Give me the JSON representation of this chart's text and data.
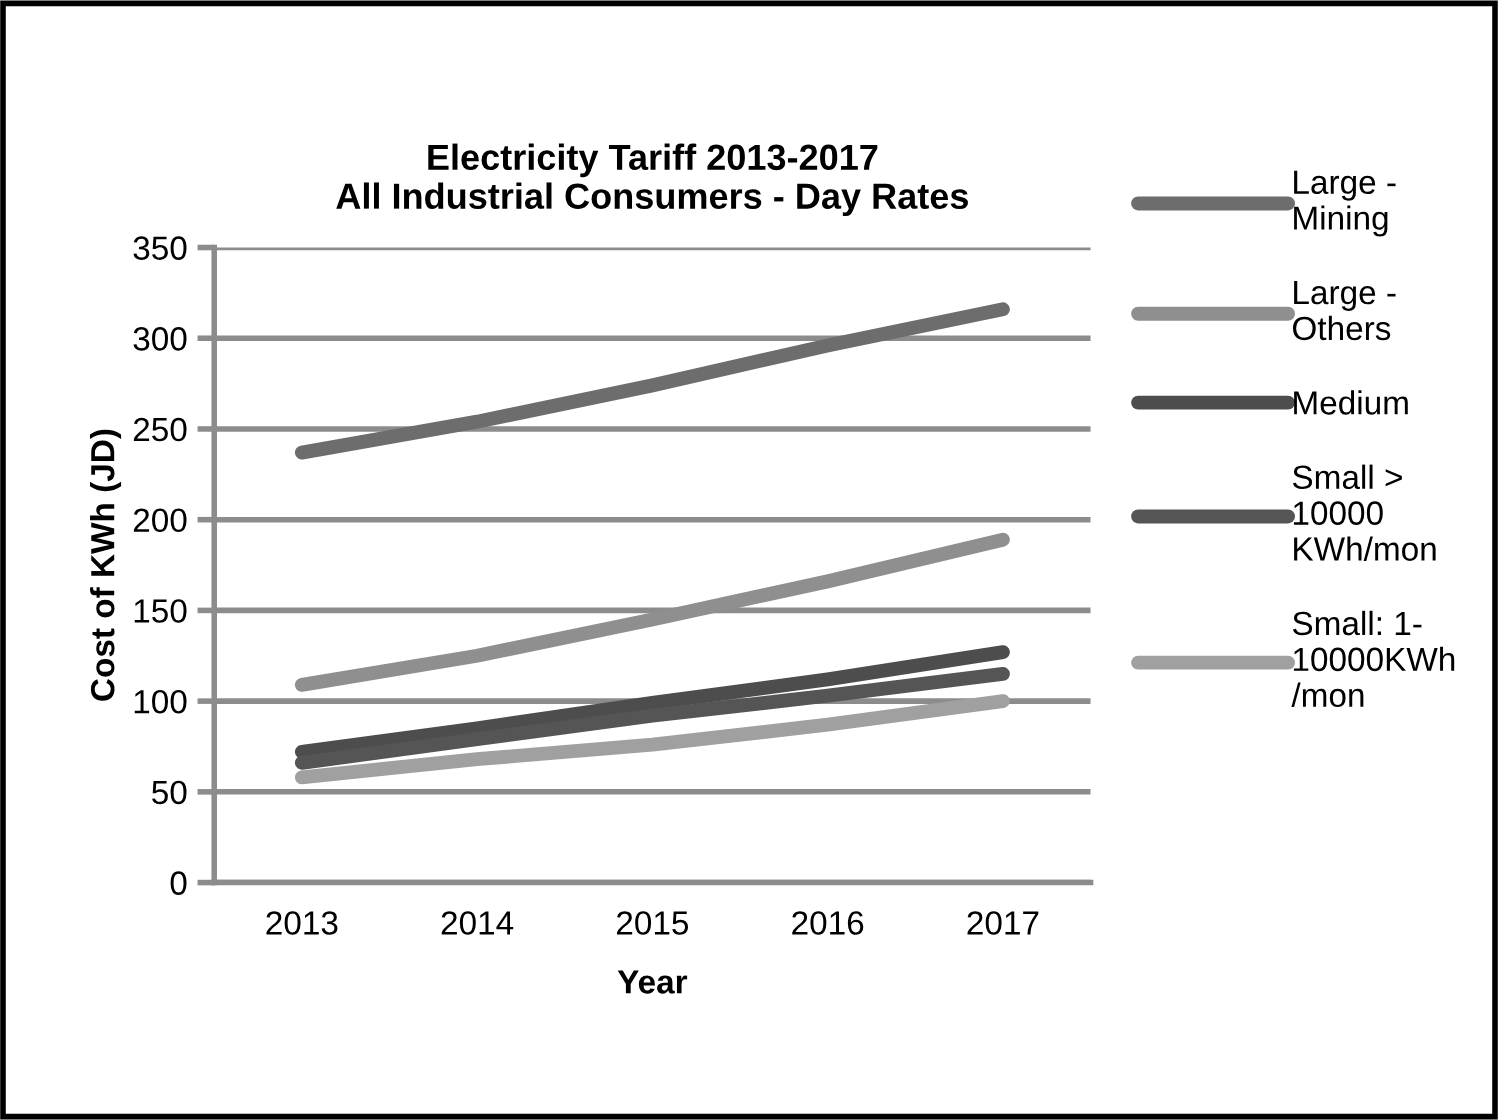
{
  "chart_data": {
    "type": "line",
    "title": "Electricity Tariff 2013-2017\nAll Industrial Consumers - Day Rates",
    "xlabel": "Year",
    "ylabel": "Cost of KWh (JD)",
    "categories": [
      "2013",
      "2014",
      "2015",
      "2016",
      "2017"
    ],
    "series": [
      {
        "name": "Large -\nMining",
        "color": "#6d6d6d",
        "values": [
          237,
          254,
          274,
          296,
          316
        ]
      },
      {
        "name": "Large -\nOthers",
        "color": "#8f8f8f",
        "values": [
          109,
          125,
          145,
          166,
          189
        ]
      },
      {
        "name": "Medium",
        "color": "#4d4d4d",
        "values": [
          72,
          85,
          99,
          112,
          127
        ]
      },
      {
        "name": "Small >\n10000\nKWh/mon",
        "color": "#555555",
        "values": [
          66,
          79,
          92,
          103,
          115
        ]
      },
      {
        "name": "Small: 1-\n10000KWh\n/mon",
        "color": "#a0a0a0",
        "values": [
          58,
          68,
          76,
          87,
          100
        ]
      }
    ],
    "ylim": [
      0,
      350
    ],
    "yticks": [
      0,
      50,
      100,
      150,
      200,
      250,
      300,
      350
    ],
    "grid": "y",
    "legend": "right",
    "marker": "none",
    "line_style": "solid"
  }
}
